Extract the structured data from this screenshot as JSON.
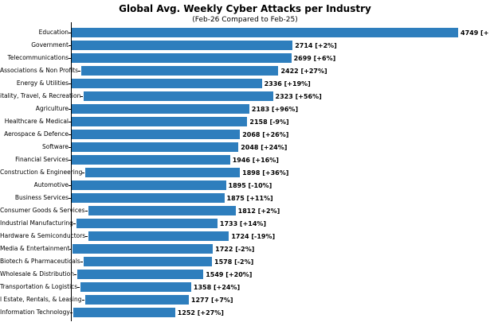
{
  "chart_data": {
    "type": "bar",
    "orientation": "horizontal",
    "title": "Global Avg. Weekly Cyber Attacks per Industry",
    "subtitle": "(Feb-26 Compared to Feb-25)",
    "bar_color": "#2e7ebd",
    "grid": false,
    "legend": false,
    "xlim": [
      0,
      4800
    ],
    "categories": [
      "Education",
      "Government",
      "Telecommunications",
      "Associations & Non Profits",
      "Energy & Utilities",
      "itality, Travel, & Recreation",
      "Agriculture",
      "Healthcare & Medical",
      "Aerospace & Defence",
      "Software",
      "Financial Services",
      "Construction & Engineering",
      "Automotive",
      "Business Services",
      "Consumer Goods & Services",
      "Industrial Manufacturing",
      "Hardware & Semiconductors",
      "Media & Entertainment",
      "Biotech & Pharmaceuticals",
      "Wholesale & Distribution",
      "Transportation & Logistics",
      "l Estate, Rentals, & Leasing",
      "Information Technology"
    ],
    "values": [
      4749,
      2714,
      2699,
      2422,
      2336,
      2323,
      2183,
      2158,
      2068,
      2048,
      1946,
      1898,
      1895,
      1875,
      1812,
      1733,
      1724,
      1722,
      1578,
      1549,
      1358,
      1277,
      1252
    ],
    "change_labels": [
      "[+",
      "[+2%]",
      "[+6%]",
      "[+27%]",
      "[+19%]",
      "[+56%]",
      "[+96%]",
      "[-9%]",
      "[+26%]",
      "[+24%]",
      "[+16%]",
      "[+36%]",
      "[-10%]",
      "[+11%]",
      "[+2%]",
      "[+14%]",
      "[-19%]",
      "[-2%]",
      "[-2%]",
      "[+20%]",
      "[+24%]",
      "[+7%]",
      "[+27%]"
    ]
  }
}
